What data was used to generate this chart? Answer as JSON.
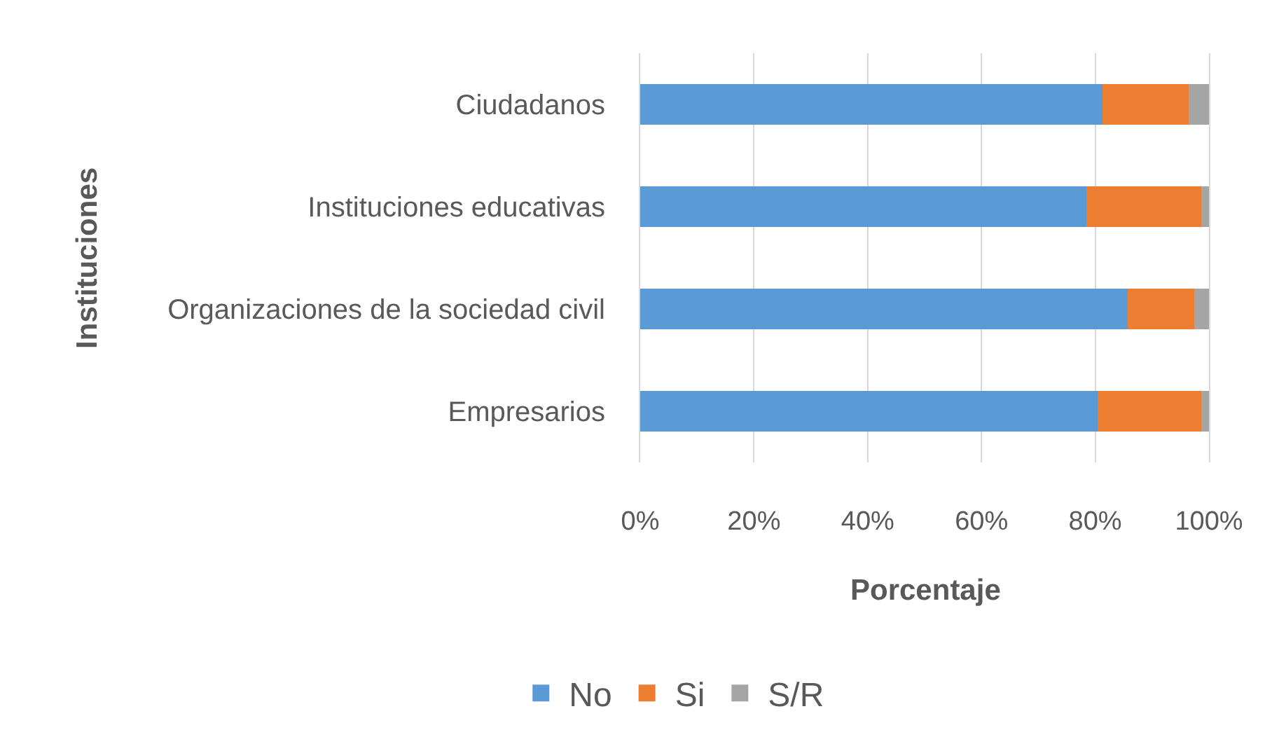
{
  "chart_data": {
    "type": "bar",
    "orientation": "horizontal",
    "stacked": true,
    "categories": [
      "Ciudadanos",
      "Instituciones educativas",
      "Organizaciones de la sociedad civil",
      "Empresarios"
    ],
    "series": [
      {
        "name": "No",
        "color": "#5b9bd5",
        "values": [
          81.3,
          78.4,
          85.7,
          80.4
        ]
      },
      {
        "name": "Si",
        "color": "#ed7d31",
        "values": [
          15.1,
          20.2,
          11.7,
          18.2
        ]
      },
      {
        "name": "S/R",
        "color": "#a5a5a5",
        "values": [
          3.6,
          1.4,
          2.6,
          1.4
        ]
      }
    ],
    "xlabel": "Porcentaje",
    "ylabel": "Instituciones",
    "xlim": [
      0,
      100
    ],
    "xticks": [
      {
        "value": 0,
        "label": "0%"
      },
      {
        "value": 20,
        "label": "20%"
      },
      {
        "value": 40,
        "label": "40%"
      },
      {
        "value": 60,
        "label": "60%"
      },
      {
        "value": 80,
        "label": "80%"
      },
      {
        "value": 100,
        "label": "100%"
      }
    ],
    "grid": "x",
    "legend": "bottom"
  }
}
